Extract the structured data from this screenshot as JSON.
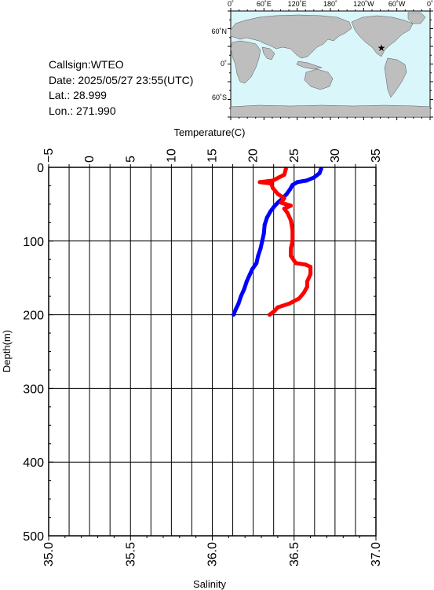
{
  "station": {
    "callsign": "Callsign:WTEO",
    "date": "Date:  2025/05/27 23:55(UTC)",
    "lat": "Lat.:   28.999",
    "lon": "Lon.:  271.990"
  },
  "map": {
    "top_labels": [
      "0˚",
      "60˚E",
      "120˚E",
      "180˚",
      "120˚W",
      "60˚W",
      "0˚"
    ],
    "lat_labels": [
      "60˚N",
      "0˚",
      "60˚S"
    ],
    "ocean_color": "#d9f6fa",
    "land_color": "#bebebe",
    "marker_icon": "star-icon",
    "marker_color": "#ff0000"
  },
  "chart_data": {
    "type": "line",
    "ylabel": "Depth(m)",
    "ylim": [
      500,
      0
    ],
    "y_ticks": [
      "0",
      "100",
      "200",
      "300",
      "400",
      "500"
    ],
    "x_top": {
      "label": "Temperature(C)",
      "lim": [
        -5,
        35
      ],
      "ticks": [
        "−5",
        "0",
        "5",
        "10",
        "15",
        "20",
        "25",
        "30",
        "35"
      ]
    },
    "x_bottom": {
      "label": "Salinity",
      "lim": [
        35.0,
        37.0
      ],
      "ticks": [
        "35.0",
        "35.5",
        "36.0",
        "36.5",
        "37.0"
      ]
    },
    "grid": true,
    "series": [
      {
        "color": "#0000ff",
        "axis": "temperature",
        "points": [
          [
            28.3,
            2
          ],
          [
            28.1,
            8
          ],
          [
            27.4,
            14
          ],
          [
            26.5,
            18
          ],
          [
            25.4,
            20
          ],
          [
            24.8,
            24
          ],
          [
            24.5,
            30
          ],
          [
            24.1,
            36
          ],
          [
            23.6,
            42
          ],
          [
            23.0,
            48
          ],
          [
            22.5,
            54
          ],
          [
            22.1,
            60
          ],
          [
            21.7,
            68
          ],
          [
            21.4,
            78
          ],
          [
            21.3,
            90
          ],
          [
            21.1,
            100
          ],
          [
            20.9,
            110
          ],
          [
            20.6,
            120
          ],
          [
            20.4,
            130
          ],
          [
            19.9,
            138
          ],
          [
            19.6,
            145
          ],
          [
            19.2,
            155
          ],
          [
            18.9,
            165
          ],
          [
            18.5,
            175
          ],
          [
            18.2,
            185
          ],
          [
            17.9,
            192
          ],
          [
            17.6,
            200
          ]
        ]
      },
      {
        "color": "#ff0000",
        "axis": "salinity",
        "points": [
          [
            36.45,
            2
          ],
          [
            36.44,
            10
          ],
          [
            36.37,
            18
          ],
          [
            36.29,
            20
          ],
          [
            36.36,
            22
          ],
          [
            36.37,
            28
          ],
          [
            36.4,
            36
          ],
          [
            36.44,
            42
          ],
          [
            36.42,
            48
          ],
          [
            36.48,
            52
          ],
          [
            36.44,
            56
          ],
          [
            36.46,
            62
          ],
          [
            36.48,
            72
          ],
          [
            36.49,
            85
          ],
          [
            36.49,
            100
          ],
          [
            36.48,
            110
          ],
          [
            36.48,
            120
          ],
          [
            36.51,
            130
          ],
          [
            36.57,
            132
          ],
          [
            36.6,
            135
          ],
          [
            36.6,
            145
          ],
          [
            36.58,
            155
          ],
          [
            36.58,
            162
          ],
          [
            36.56,
            170
          ],
          [
            36.53,
            178
          ],
          [
            36.47,
            185
          ],
          [
            36.4,
            190
          ],
          [
            36.38,
            195
          ],
          [
            36.35,
            200
          ]
        ]
      }
    ]
  }
}
